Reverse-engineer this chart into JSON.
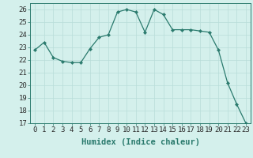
{
  "x": [
    0,
    1,
    2,
    3,
    4,
    5,
    6,
    7,
    8,
    9,
    10,
    11,
    12,
    13,
    14,
    15,
    16,
    17,
    18,
    19,
    20,
    21,
    22,
    23
  ],
  "y": [
    22.8,
    23.4,
    22.2,
    21.9,
    21.8,
    21.8,
    22.9,
    23.8,
    24.0,
    25.8,
    26.0,
    25.8,
    24.2,
    26.0,
    25.6,
    24.4,
    24.4,
    24.4,
    24.3,
    24.2,
    22.8,
    20.2,
    18.5,
    17.0
  ],
  "line_color": "#2a7a6d",
  "marker_color": "#2a7a6d",
  "bg_color": "#d4f0ec",
  "grid_color": "#b8ddd9",
  "xlabel": "Humidex (Indice chaleur)",
  "xlim": [
    -0.5,
    23.5
  ],
  "ylim": [
    17,
    26.5
  ],
  "yticks": [
    17,
    18,
    19,
    20,
    21,
    22,
    23,
    24,
    25,
    26
  ],
  "xticks": [
    0,
    1,
    2,
    3,
    4,
    5,
    6,
    7,
    8,
    9,
    10,
    11,
    12,
    13,
    14,
    15,
    16,
    17,
    18,
    19,
    20,
    21,
    22,
    23
  ],
  "xlabel_fontsize": 7.5,
  "tick_fontsize": 6.5
}
